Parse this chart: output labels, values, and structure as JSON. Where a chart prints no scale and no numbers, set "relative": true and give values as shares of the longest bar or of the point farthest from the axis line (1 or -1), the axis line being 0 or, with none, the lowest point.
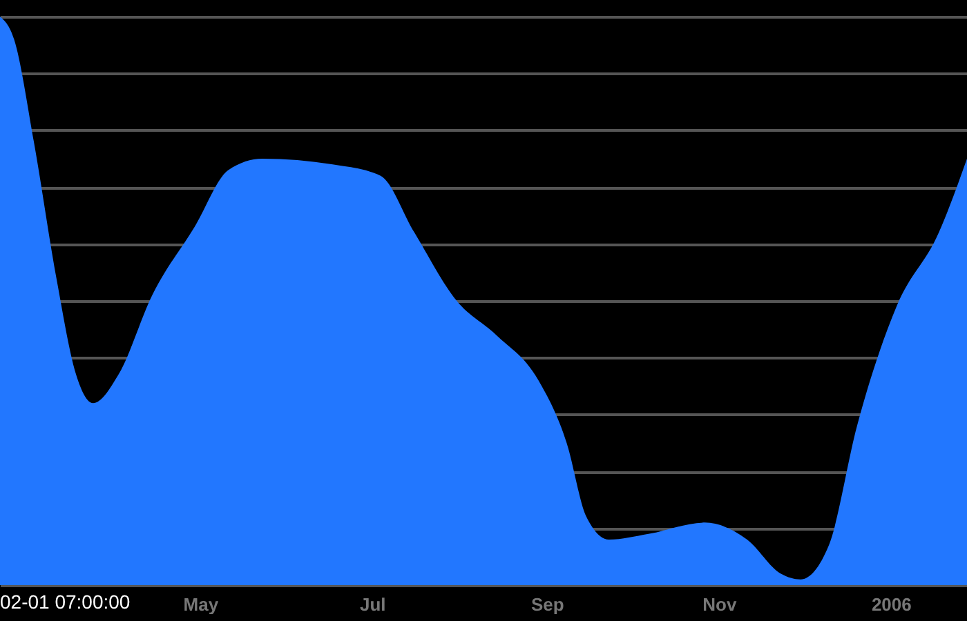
{
  "chart_data": {
    "type": "area",
    "relative": true,
    "grid": "y",
    "color": "#2277ff",
    "annotations": [
      "02-01 07:00:00"
    ],
    "x": [
      "2005-02-19",
      "2005-02-24",
      "2005-03-03",
      "2005-03-11",
      "2005-03-18",
      "2005-03-24",
      "2005-04-02",
      "2005-04-14",
      "2005-04-29",
      "2005-05-11",
      "2005-05-23",
      "2005-06-17",
      "2005-07-04",
      "2005-07-16",
      "2005-07-31",
      "2005-08-14",
      "2005-08-29",
      "2005-09-08",
      "2005-09-15",
      "2005-09-23",
      "2005-10-07",
      "2005-10-27",
      "2005-11-11",
      "2005-11-23",
      "2005-11-30",
      "2005-12-10",
      "2005-12-20",
      "2006-01-03",
      "2006-01-18",
      "2006-01-28"
    ],
    "values": [
      1.0,
      0.96,
      0.78,
      0.54,
      0.37,
      0.32,
      0.37,
      0.51,
      0.63,
      0.73,
      0.75,
      0.74,
      0.72,
      0.62,
      0.5,
      0.44,
      0.36,
      0.25,
      0.12,
      0.08,
      0.09,
      0.11,
      0.08,
      0.02,
      0.01,
      0.07,
      0.28,
      0.49,
      0.62,
      0.75
    ],
    "xlim": [
      "2005-02-19",
      "2006-01-28"
    ],
    "xticks": [
      {
        "value": "2005-05-01",
        "label": "May"
      },
      {
        "value": "2005-07-01",
        "label": "Jul"
      },
      {
        "value": "2005-09-01",
        "label": "Sep"
      },
      {
        "value": "2005-11-01",
        "label": "Nov"
      },
      {
        "value": "2006-01-01",
        "label": "2006"
      }
    ]
  }
}
